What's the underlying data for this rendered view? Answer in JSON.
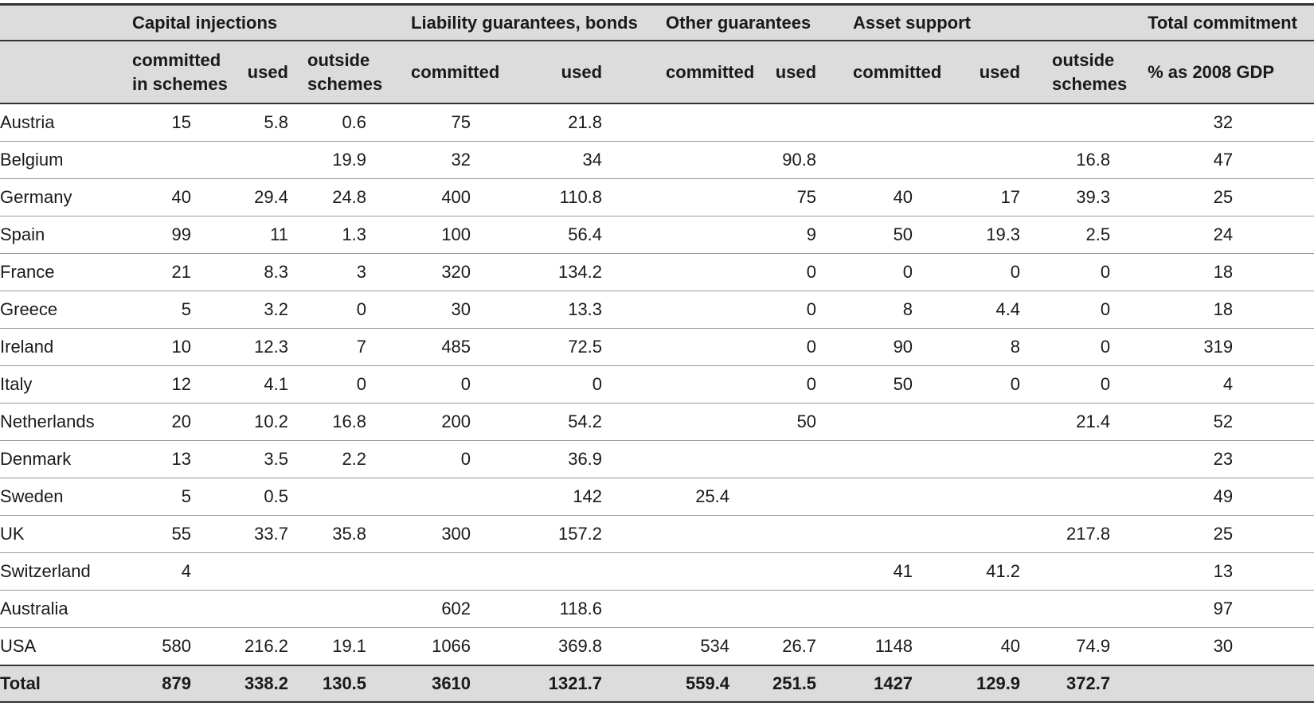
{
  "groups": [
    "Capital injections",
    "Liability guarantees, bonds",
    "Other guarantees",
    "Asset support",
    "Total commitment"
  ],
  "subheaders": [
    [
      "committed",
      "in schemes"
    ],
    [
      "used"
    ],
    [
      "outside",
      "schemes"
    ],
    [
      "committed"
    ],
    [
      "used"
    ],
    [
      "committed"
    ],
    [
      "used"
    ],
    [
      "committed"
    ],
    [
      "used"
    ],
    [
      "outside",
      "schemes"
    ],
    [
      "% as 2008 GDP"
    ]
  ],
  "rows": [
    [
      "Austria",
      "15",
      "5.8",
      "0.6",
      "75",
      "21.8",
      "",
      "",
      "",
      "",
      "",
      "32"
    ],
    [
      "Belgium",
      "",
      "",
      "19.9",
      "32",
      "34",
      "",
      "90.8",
      "",
      "",
      "16.8",
      "47"
    ],
    [
      "Germany",
      "40",
      "29.4",
      "24.8",
      "400",
      "110.8",
      "",
      "75",
      "40",
      "17",
      "39.3",
      "25"
    ],
    [
      "Spain",
      "99",
      "11",
      "1.3",
      "100",
      "56.4",
      "",
      "9",
      "50",
      "19.3",
      "2.5",
      "24"
    ],
    [
      "France",
      "21",
      "8.3",
      "3",
      "320",
      "134.2",
      "",
      "0",
      "0",
      "0",
      "0",
      "18"
    ],
    [
      "Greece",
      "5",
      "3.2",
      "0",
      "30",
      "13.3",
      "",
      "0",
      "8",
      "4.4",
      "0",
      "18"
    ],
    [
      "Ireland",
      "10",
      "12.3",
      "7",
      "485",
      "72.5",
      "",
      "0",
      "90",
      "8",
      "0",
      "319"
    ],
    [
      "Italy",
      "12",
      "4.1",
      "0",
      "0",
      "0",
      "",
      "0",
      "50",
      "0",
      "0",
      "4"
    ],
    [
      "Netherlands",
      "20",
      "10.2",
      "16.8",
      "200",
      "54.2",
      "",
      "50",
      "",
      "",
      "21.4",
      "52"
    ],
    [
      "Denmark",
      "13",
      "3.5",
      "2.2",
      "0",
      "36.9",
      "",
      "",
      "",
      "",
      "",
      "23"
    ],
    [
      "Sweden",
      "5",
      "0.5",
      "",
      "",
      "142",
      "25.4",
      "",
      "",
      "",
      "",
      "49"
    ],
    [
      "UK",
      "55",
      "33.7",
      "35.8",
      "300",
      "157.2",
      "",
      "",
      "",
      "",
      "217.8",
      "25"
    ],
    [
      "Switzerland",
      "4",
      "",
      "",
      "",
      "",
      "",
      "",
      "41",
      "41.2",
      "",
      "13"
    ],
    [
      "Australia",
      "",
      "",
      "",
      "602",
      "118.6",
      "",
      "",
      "",
      "",
      "",
      "97"
    ],
    [
      "USA",
      "580",
      "216.2",
      "19.1",
      "1066",
      "369.8",
      "534",
      "26.7",
      "1148",
      "40",
      "74.9",
      "30"
    ]
  ],
  "total": [
    "Total",
    "879",
    "338.2",
    "130.5",
    "3610",
    "1321.7",
    "559.4",
    "251.5",
    "1427",
    "129.9",
    "372.7",
    ""
  ]
}
